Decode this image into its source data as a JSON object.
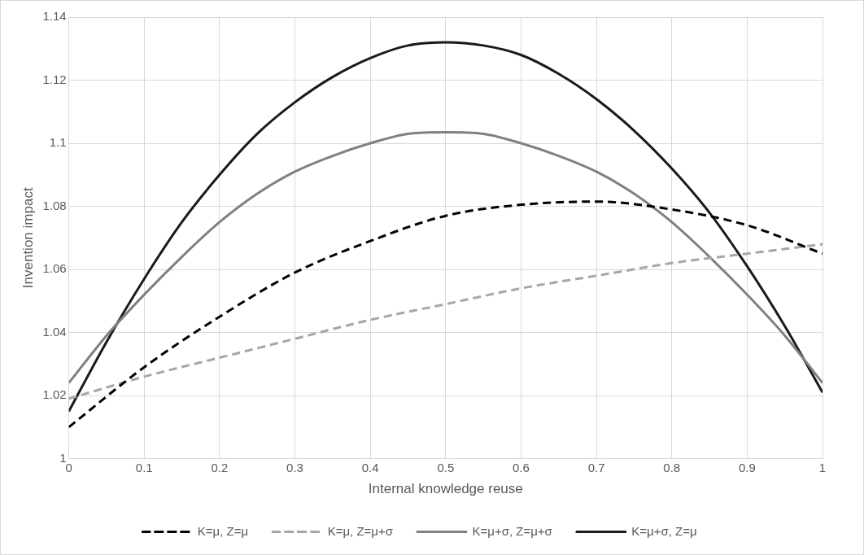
{
  "chart_data": {
    "type": "line",
    "xlabel": "Internal knowledge reuse",
    "ylabel": "Invention impact",
    "xlim": [
      0,
      1
    ],
    "xticks": [
      0,
      0.1,
      0.2,
      0.3,
      0.4,
      0.5,
      0.6,
      0.7,
      0.8,
      0.9,
      1
    ],
    "ylim": [
      1,
      1.14
    ],
    "yticks": [
      1,
      1.02,
      1.04,
      1.06,
      1.08,
      1.1,
      1.12,
      1.14
    ],
    "grid": true,
    "legend": "bottom",
    "marker": "none",
    "series": [
      {
        "name": "K=μ, Z=μ",
        "color": "#000000",
        "line_style": "dashed",
        "x": [
          0,
          0.1,
          0.2,
          0.3,
          0.4,
          0.5,
          0.6,
          0.7,
          0.8,
          0.9,
          1
        ],
        "values": [
          1.01,
          1.029,
          1.045,
          1.059,
          1.069,
          1.077,
          1.0805,
          1.0815,
          1.079,
          1.074,
          1.065
        ]
      },
      {
        "name": "K=μ, Z=μ+σ",
        "color": "#a6a6a6",
        "line_style": "dashed",
        "x": [
          0,
          0.1,
          0.2,
          0.3,
          0.4,
          0.5,
          0.6,
          0.7,
          0.8,
          0.9,
          1
        ],
        "values": [
          1.019,
          1.026,
          1.032,
          1.038,
          1.044,
          1.049,
          1.054,
          1.058,
          1.062,
          1.065,
          1.068
        ]
      },
      {
        "name": "K=μ+σ, Z=μ+σ",
        "color": "#808080",
        "line_style": "solid",
        "x": [
          0,
          0.05,
          0.1,
          0.15,
          0.2,
          0.25,
          0.3,
          0.35,
          0.4,
          0.45,
          0.5,
          0.55,
          0.6,
          0.65,
          0.7,
          0.75,
          0.8,
          0.85,
          0.9,
          0.95,
          1
        ],
        "values": [
          1.024,
          1.039,
          1.052,
          1.064,
          1.075,
          1.084,
          1.091,
          1.096,
          1.1,
          1.103,
          1.1035,
          1.103,
          1.1,
          1.096,
          1.091,
          1.084,
          1.075,
          1.064,
          1.052,
          1.039,
          1.024
        ]
      },
      {
        "name": "K=μ+σ, Z=μ",
        "color": "#1a1a1a",
        "line_style": "solid",
        "x": [
          0,
          0.05,
          0.1,
          0.15,
          0.2,
          0.25,
          0.3,
          0.35,
          0.4,
          0.45,
          0.5,
          0.55,
          0.6,
          0.65,
          0.7,
          0.75,
          0.8,
          0.85,
          0.9,
          0.95,
          1
        ],
        "values": [
          1.015,
          1.037,
          1.057,
          1.075,
          1.09,
          1.103,
          1.113,
          1.121,
          1.127,
          1.131,
          1.132,
          1.131,
          1.128,
          1.122,
          1.114,
          1.104,
          1.092,
          1.078,
          1.061,
          1.042,
          1.021
        ]
      }
    ]
  }
}
